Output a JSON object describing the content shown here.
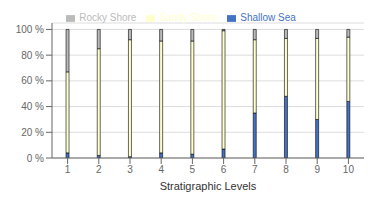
{
  "chart_data": {
    "type": "bar",
    "stacked": true,
    "categories": [
      1,
      2,
      3,
      4,
      5,
      6,
      7,
      8,
      9,
      10
    ],
    "series": [
      {
        "name": "Shallow Sea",
        "color": "#4472C4",
        "values": [
          4,
          2,
          1,
          4,
          3,
          7,
          35,
          48,
          30,
          44
        ]
      },
      {
        "name": "Sandy Shore",
        "color": "#FFFFCC",
        "values": [
          63,
          83,
          91,
          87,
          88,
          92,
          57,
          45,
          63,
          50
        ]
      },
      {
        "name": "Rocky Shore",
        "color": "#BBBBBB",
        "values": [
          33,
          15,
          8,
          9,
          9,
          1,
          8,
          7,
          7,
          6
        ]
      }
    ],
    "xlabel": "Stratigraphic Levels",
    "ylim": [
      0,
      105
    ],
    "yticks": [
      {
        "value": 0,
        "label": "0 %"
      },
      {
        "value": 20,
        "label": "20 %"
      },
      {
        "value": 40,
        "label": "40 %"
      },
      {
        "value": 60,
        "label": "60 %"
      },
      {
        "value": 80,
        "label": "80 %"
      },
      {
        "value": 100,
        "label": "100 %"
      }
    ],
    "grid": true,
    "legend": "top"
  }
}
